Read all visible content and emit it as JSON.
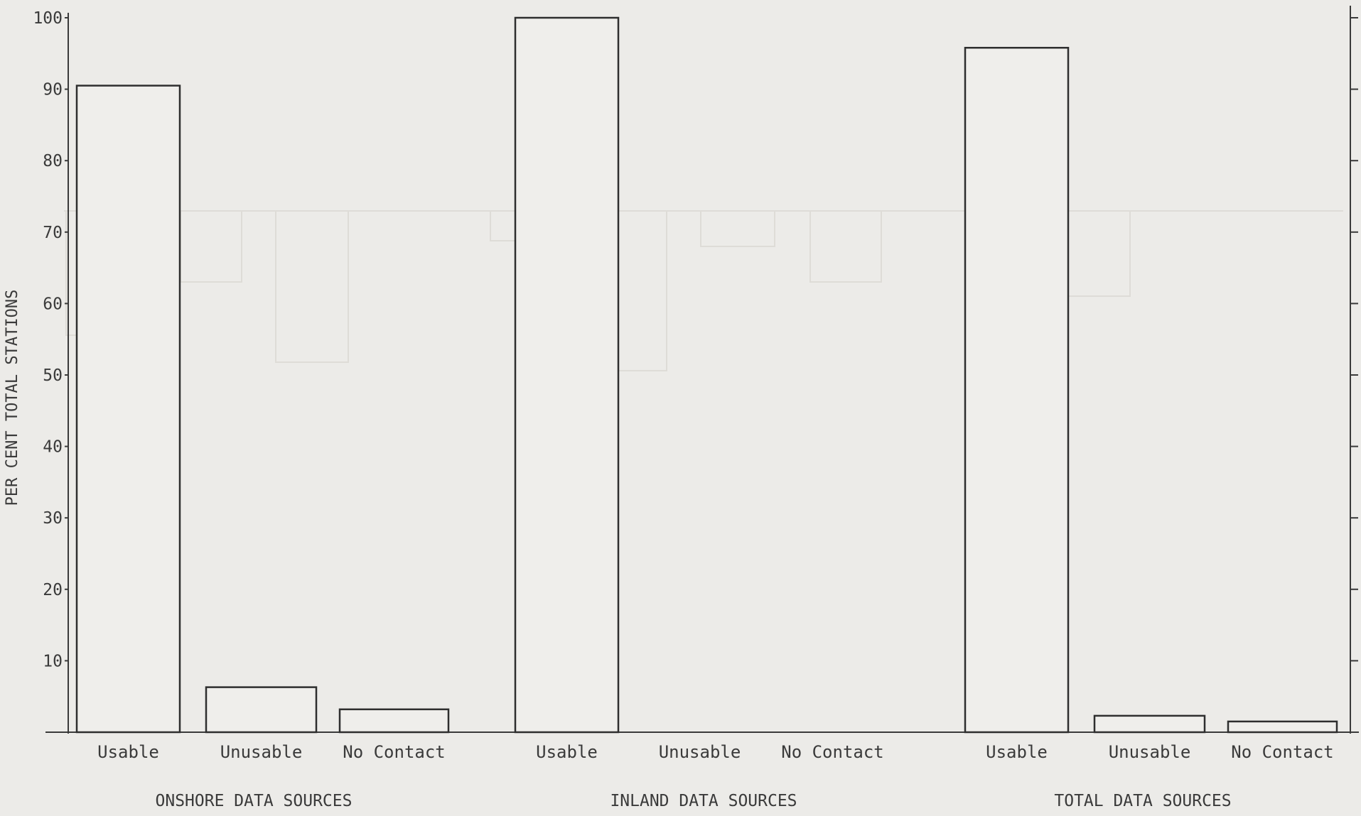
{
  "chart_data": {
    "type": "bar",
    "ylabel": "PER CENT TOTAL STATIONS",
    "ylim": [
      0,
      100
    ],
    "yticks": [
      10,
      20,
      30,
      40,
      50,
      60,
      70,
      80,
      90,
      100
    ],
    "grid": false,
    "groups": [
      {
        "name": "ONSHORE DATA SOURCES",
        "categories": [
          "Usable",
          "Unusable",
          "No Contact"
        ],
        "values": [
          90.5,
          6.3,
          3.2
        ]
      },
      {
        "name": "INLAND DATA SOURCES",
        "categories": [
          "Usable",
          "Unusable",
          "No Contact"
        ],
        "values": [
          100,
          0,
          0
        ]
      },
      {
        "name": "TOTAL DATA SOURCES",
        "categories": [
          "Usable",
          "Unusable",
          "No Contact"
        ],
        "values": [
          95.8,
          2.3,
          1.5
        ]
      }
    ]
  }
}
